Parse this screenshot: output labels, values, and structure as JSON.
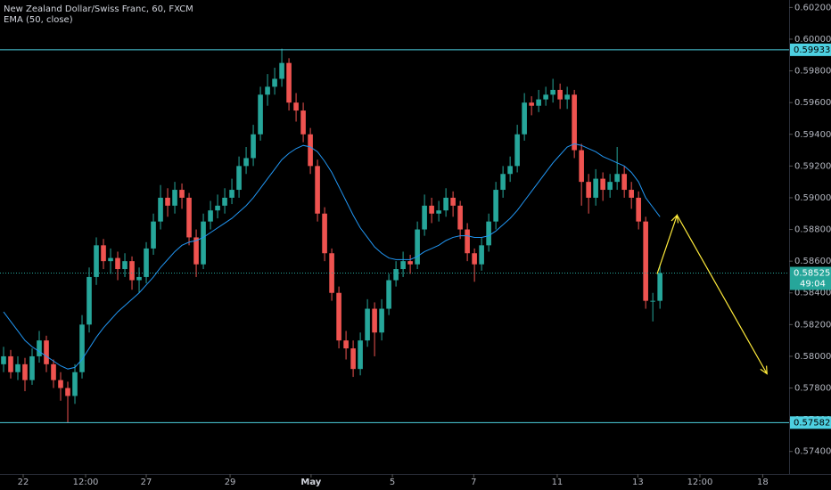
{
  "chart_data": {
    "type": "candlestick",
    "title": "New Zealand Dollar/Swiss Franc, 60, FXCM",
    "subtitle": "EMA (50, close)",
    "x": [
      0,
      1,
      2,
      3,
      4,
      5,
      6,
      7,
      8,
      9,
      10,
      11,
      12,
      13,
      14,
      15,
      16,
      17,
      18,
      19,
      20,
      21,
      22,
      23,
      24,
      25,
      26,
      27,
      28,
      29,
      30,
      31,
      32,
      33,
      34,
      35,
      36,
      37,
      38,
      39,
      40,
      41,
      42,
      43,
      44,
      45,
      46,
      47,
      48,
      49,
      50,
      51,
      52,
      53,
      54,
      55,
      56,
      57,
      58,
      59,
      60,
      61,
      62,
      63,
      64,
      65,
      66,
      67,
      68,
      69,
      70,
      71,
      72,
      73,
      74,
      75,
      76,
      77,
      78,
      79,
      80,
      81,
      82,
      83,
      84,
      85,
      86,
      87,
      88,
      89,
      90,
      91,
      92
    ],
    "open": [
      0.5795,
      0.58,
      0.579,
      0.5795,
      0.5785,
      0.58,
      0.581,
      0.5795,
      0.5785,
      0.578,
      0.5775,
      0.579,
      0.582,
      0.585,
      0.587,
      0.586,
      0.5862,
      0.5855,
      0.586,
      0.5848,
      0.585,
      0.5868,
      0.5885,
      0.59,
      0.5895,
      0.5905,
      0.59,
      0.5875,
      0.5858,
      0.5885,
      0.5892,
      0.5895,
      0.59,
      0.5905,
      0.592,
      0.5925,
      0.594,
      0.5965,
      0.597,
      0.5975,
      0.5985,
      0.596,
      0.5955,
      0.594,
      0.592,
      0.589,
      0.5865,
      0.584,
      0.581,
      0.5805,
      0.5792,
      0.581,
      0.583,
      0.5815,
      0.583,
      0.5848,
      0.5855,
      0.586,
      0.5858,
      0.588,
      0.5895,
      0.589,
      0.5892,
      0.59,
      0.5895,
      0.588,
      0.5865,
      0.5858,
      0.587,
      0.5885,
      0.5905,
      0.5915,
      0.592,
      0.594,
      0.596,
      0.5958,
      0.5962,
      0.5965,
      0.5968,
      0.5962,
      0.5965,
      0.593,
      0.591,
      0.59,
      0.5912,
      0.5905,
      0.591,
      0.5915,
      0.5905,
      0.59,
      0.5885,
      0.5835,
      0.5835
    ],
    "high": [
      0.5806,
      0.5804,
      0.58,
      0.5799,
      0.5805,
      0.5816,
      0.5813,
      0.5798,
      0.579,
      0.5784,
      0.5795,
      0.5826,
      0.5856,
      0.5875,
      0.5874,
      0.5868,
      0.5866,
      0.5865,
      0.5863,
      0.5856,
      0.5872,
      0.589,
      0.5908,
      0.5906,
      0.591,
      0.5909,
      0.5903,
      0.588,
      0.589,
      0.5898,
      0.5902,
      0.5906,
      0.5912,
      0.5926,
      0.5932,
      0.5946,
      0.597,
      0.5978,
      0.5982,
      0.5994,
      0.5988,
      0.5966,
      0.596,
      0.5944,
      0.5924,
      0.5894,
      0.5868,
      0.5844,
      0.5816,
      0.581,
      0.5815,
      0.5836,
      0.5834,
      0.5836,
      0.5852,
      0.586,
      0.5866,
      0.5864,
      0.5885,
      0.5902,
      0.59,
      0.5898,
      0.5906,
      0.5904,
      0.5898,
      0.5884,
      0.5868,
      0.5875,
      0.589,
      0.591,
      0.592,
      0.5926,
      0.5946,
      0.5966,
      0.5964,
      0.5968,
      0.597,
      0.5975,
      0.5972,
      0.597,
      0.5968,
      0.5934,
      0.5915,
      0.5918,
      0.5916,
      0.5915,
      0.5932,
      0.592,
      0.591,
      0.5904,
      0.5888,
      0.584,
      0.5858
    ],
    "low": [
      0.579,
      0.5786,
      0.5785,
      0.5778,
      0.5782,
      0.5796,
      0.579,
      0.578,
      0.5772,
      0.5758,
      0.577,
      0.5786,
      0.5815,
      0.5845,
      0.5855,
      0.5852,
      0.5848,
      0.585,
      0.5842,
      0.584,
      0.5846,
      0.5864,
      0.588,
      0.5888,
      0.589,
      0.5893,
      0.587,
      0.585,
      0.5855,
      0.588,
      0.5887,
      0.589,
      0.5896,
      0.59,
      0.5915,
      0.592,
      0.5936,
      0.5958,
      0.5965,
      0.597,
      0.5955,
      0.5948,
      0.5935,
      0.5915,
      0.5885,
      0.586,
      0.5835,
      0.5805,
      0.5798,
      0.5787,
      0.5788,
      0.5806,
      0.58,
      0.581,
      0.5826,
      0.5844,
      0.585,
      0.5852,
      0.5855,
      0.5876,
      0.5884,
      0.5885,
      0.5888,
      0.5888,
      0.5874,
      0.586,
      0.5847,
      0.5854,
      0.5866,
      0.588,
      0.59,
      0.591,
      0.5916,
      0.5936,
      0.5952,
      0.5954,
      0.5958,
      0.596,
      0.5956,
      0.5956,
      0.5925,
      0.5895,
      0.589,
      0.5895,
      0.5898,
      0.59,
      0.5905,
      0.59,
      0.5893,
      0.588,
      0.583,
      0.5822,
      0.583
    ],
    "close": [
      0.58,
      0.579,
      0.5795,
      0.5785,
      0.58,
      0.581,
      0.5795,
      0.5785,
      0.578,
      0.5775,
      0.579,
      0.582,
      0.585,
      0.587,
      0.586,
      0.5862,
      0.5855,
      0.586,
      0.5848,
      0.585,
      0.5868,
      0.5885,
      0.59,
      0.5895,
      0.5905,
      0.59,
      0.5875,
      0.5858,
      0.5885,
      0.5892,
      0.5895,
      0.59,
      0.5905,
      0.592,
      0.5925,
      0.594,
      0.5965,
      0.597,
      0.5975,
      0.5985,
      0.596,
      0.5955,
      0.594,
      0.592,
      0.589,
      0.5865,
      0.584,
      0.581,
      0.5805,
      0.5792,
      0.581,
      0.583,
      0.5815,
      0.583,
      0.5848,
      0.5855,
      0.586,
      0.5858,
      0.588,
      0.5895,
      0.589,
      0.5892,
      0.59,
      0.5895,
      0.588,
      0.5865,
      0.5858,
      0.587,
      0.5885,
      0.5905,
      0.5915,
      0.592,
      0.594,
      0.596,
      0.5958,
      0.5962,
      0.5965,
      0.5968,
      0.5962,
      0.5965,
      0.593,
      0.591,
      0.59,
      0.5912,
      0.5905,
      0.591,
      0.5915,
      0.5905,
      0.59,
      0.5885,
      0.5835,
      0.5835,
      0.58525
    ],
    "up_color": "#26a69a",
    "down_color": "#ef5350",
    "ema": {
      "color": "#2196f3",
      "values": [
        0.5828,
        0.5822,
        0.5816,
        0.581,
        0.5806,
        0.5803,
        0.58,
        0.5797,
        0.5794,
        0.5792,
        0.5793,
        0.5798,
        0.5805,
        0.5812,
        0.5818,
        0.5823,
        0.5828,
        0.5832,
        0.5836,
        0.584,
        0.5845,
        0.585,
        0.5856,
        0.5861,
        0.5866,
        0.587,
        0.5872,
        0.5873,
        0.5875,
        0.5878,
        0.5881,
        0.5884,
        0.5887,
        0.5891,
        0.5895,
        0.59,
        0.5906,
        0.5912,
        0.5918,
        0.5924,
        0.5928,
        0.5931,
        0.5933,
        0.5932,
        0.5929,
        0.5923,
        0.5916,
        0.5907,
        0.5898,
        0.5889,
        0.5881,
        0.5875,
        0.5869,
        0.5865,
        0.5862,
        0.5861,
        0.5861,
        0.5861,
        0.5863,
        0.5866,
        0.5868,
        0.587,
        0.5873,
        0.5875,
        0.5876,
        0.5876,
        0.5875,
        0.5875,
        0.5876,
        0.5879,
        0.5883,
        0.5887,
        0.5892,
        0.5898,
        0.5904,
        0.591,
        0.5916,
        0.5922,
        0.5927,
        0.5932,
        0.5934,
        0.5933,
        0.5931,
        0.5929,
        0.5926,
        0.5924,
        0.5922,
        0.592,
        0.5916,
        0.591,
        0.59,
        0.5894,
        0.5888
      ]
    },
    "levels": [
      {
        "value": 0.59933,
        "color": "#4dd0e1"
      },
      {
        "value": 0.57582,
        "color": "#4dd0e1"
      }
    ],
    "last_price": {
      "value": 0.58525,
      "color": "#26a69a",
      "countdown": "49:04"
    },
    "drawing": {
      "color": "#ffeb3b",
      "x": [
        91.6,
        94.4,
        107
      ],
      "y": [
        0.5852,
        0.5889,
        0.5789
      ]
    },
    "xlim": [
      -0.5,
      110.1
    ],
    "ylim": [
      0.57258,
      0.60247
    ],
    "xticks": [
      {
        "value": 2.75,
        "label": "22"
      },
      {
        "value": 11.5,
        "label": "12:00"
      },
      {
        "value": 20,
        "label": "27"
      },
      {
        "value": 31.75,
        "label": "29"
      },
      {
        "value": 43.1,
        "label": "May"
      },
      {
        "value": 54.5,
        "label": "5"
      },
      {
        "value": 65.9,
        "label": "7"
      },
      {
        "value": 77.6,
        "label": "11"
      },
      {
        "value": 88.9,
        "label": "13"
      },
      {
        "value": 97.6,
        "label": "12:00"
      },
      {
        "value": 106.4,
        "label": "18"
      }
    ],
    "yticks": [
      {
        "value": 0.574,
        "label": "0.57400"
      },
      {
        "value": 0.576,
        "label": "0.57600"
      },
      {
        "value": 0.578,
        "label": "0.57800"
      },
      {
        "value": 0.58,
        "label": "0.58000"
      },
      {
        "value": 0.582,
        "label": "0.58200"
      },
      {
        "value": 0.584,
        "label": "0.58400"
      },
      {
        "value": 0.586,
        "label": "0.58600"
      },
      {
        "value": 0.588,
        "label": "0.58800"
      },
      {
        "value": 0.59,
        "label": "0.59000"
      },
      {
        "value": 0.592,
        "label": "0.59200"
      },
      {
        "value": 0.594,
        "label": "0.59400"
      },
      {
        "value": 0.596,
        "label": "0.59600"
      },
      {
        "value": 0.598,
        "label": "0.59800"
      },
      {
        "value": 0.6,
        "label": "0.60000"
      },
      {
        "value": 0.602,
        "label": "0.60200"
      }
    ]
  }
}
